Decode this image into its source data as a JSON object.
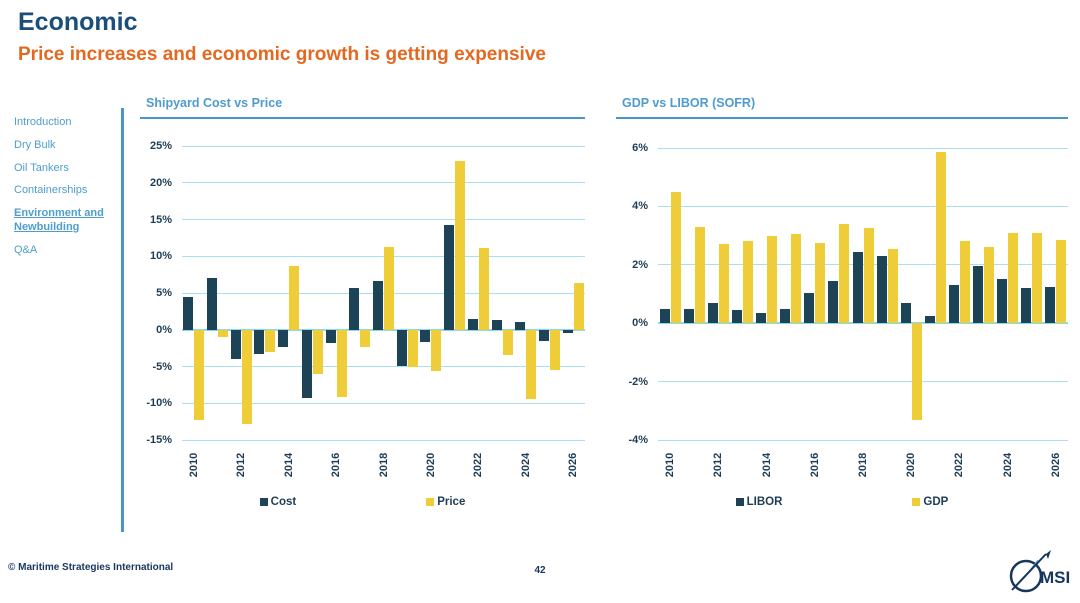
{
  "slide": {
    "title": "Economic",
    "subtitle": "Price increases and economic growth is getting expensive",
    "footer": "© Maritime Strategies International",
    "page_number": "42",
    "logo_text": "MSI"
  },
  "sidebar": {
    "items": [
      {
        "label": "Introduction",
        "active": false
      },
      {
        "label": "Dry Bulk",
        "active": false
      },
      {
        "label": "Oil Tankers",
        "active": false
      },
      {
        "label": "Containerships",
        "active": false
      },
      {
        "label": "Environment and Newbuilding",
        "active": true
      },
      {
        "label": "Q&A",
        "active": false
      }
    ]
  },
  "colors": {
    "title_navy": "#1b4e79",
    "subtitle_orange": "#e4681f",
    "sidebar_blue": "#4e9ecd",
    "chart_title_blue": "#4d9bd0",
    "accent_rule_blue": "#4a96c8",
    "gridline_cyan": "#a9dff2",
    "bar_dark_navy": "#1c4356",
    "bar_yellow": "#efcd39",
    "axis_text": "#1e3d55"
  },
  "chart_data": [
    {
      "type": "bar",
      "title": "Shipyard Cost vs Price",
      "categories": [
        2010,
        2011,
        2012,
        2013,
        2014,
        2015,
        2016,
        2017,
        2018,
        2019,
        2020,
        2021,
        2022,
        2023,
        2024,
        2025,
        2026
      ],
      "x_tick_labels": [
        "2010",
        "2012",
        "2014",
        "2016",
        "2018",
        "2020",
        "2022",
        "2024",
        "2026"
      ],
      "series": [
        {
          "name": "Cost",
          "color": "#1c4356",
          "values": [
            4.5,
            7.0,
            -4.0,
            -3.3,
            -2.3,
            -9.3,
            -1.8,
            5.7,
            6.7,
            -4.9,
            -1.6,
            14.3,
            1.5,
            1.3,
            1.1,
            -1.5,
            -0.5
          ]
        },
        {
          "name": "Price",
          "color": "#efcd39",
          "values": [
            -12.3,
            -1.0,
            -12.8,
            -3.0,
            8.7,
            -6.0,
            -9.1,
            -2.3,
            11.2,
            -5.0,
            -5.6,
            22.9,
            11.1,
            -3.4,
            -9.4,
            -5.5,
            6.4
          ]
        }
      ],
      "unit": "%",
      "ylim": [
        -15,
        25
      ],
      "ytick_step": 5,
      "grid": true,
      "legend_position": "bottom"
    },
    {
      "type": "bar",
      "title": "GDP vs LIBOR (SOFR)",
      "categories": [
        2010,
        2011,
        2012,
        2013,
        2014,
        2015,
        2016,
        2017,
        2018,
        2019,
        2020,
        2021,
        2022,
        2023,
        2024,
        2025,
        2026
      ],
      "x_tick_labels": [
        "2010",
        "2012",
        "2014",
        "2016",
        "2018",
        "2020",
        "2022",
        "2024",
        "2026"
      ],
      "series": [
        {
          "name": "LIBOR",
          "color": "#1c4356",
          "values": [
            0.5,
            0.5,
            0.7,
            0.45,
            0.35,
            0.5,
            1.05,
            1.45,
            2.45,
            2.3,
            0.7,
            0.25,
            1.3,
            1.95,
            1.5,
            1.2,
            1.25
          ]
        },
        {
          "name": "GDP",
          "color": "#efcd39",
          "values": [
            4.5,
            3.3,
            2.7,
            2.8,
            3.0,
            3.05,
            2.75,
            3.4,
            3.25,
            2.55,
            -3.3,
            5.85,
            2.8,
            2.6,
            3.1,
            3.1,
            2.85
          ]
        }
      ],
      "unit": "%",
      "ylim": [
        -4,
        6
      ],
      "ytick_step": 2,
      "grid": true,
      "legend_position": "bottom"
    }
  ]
}
